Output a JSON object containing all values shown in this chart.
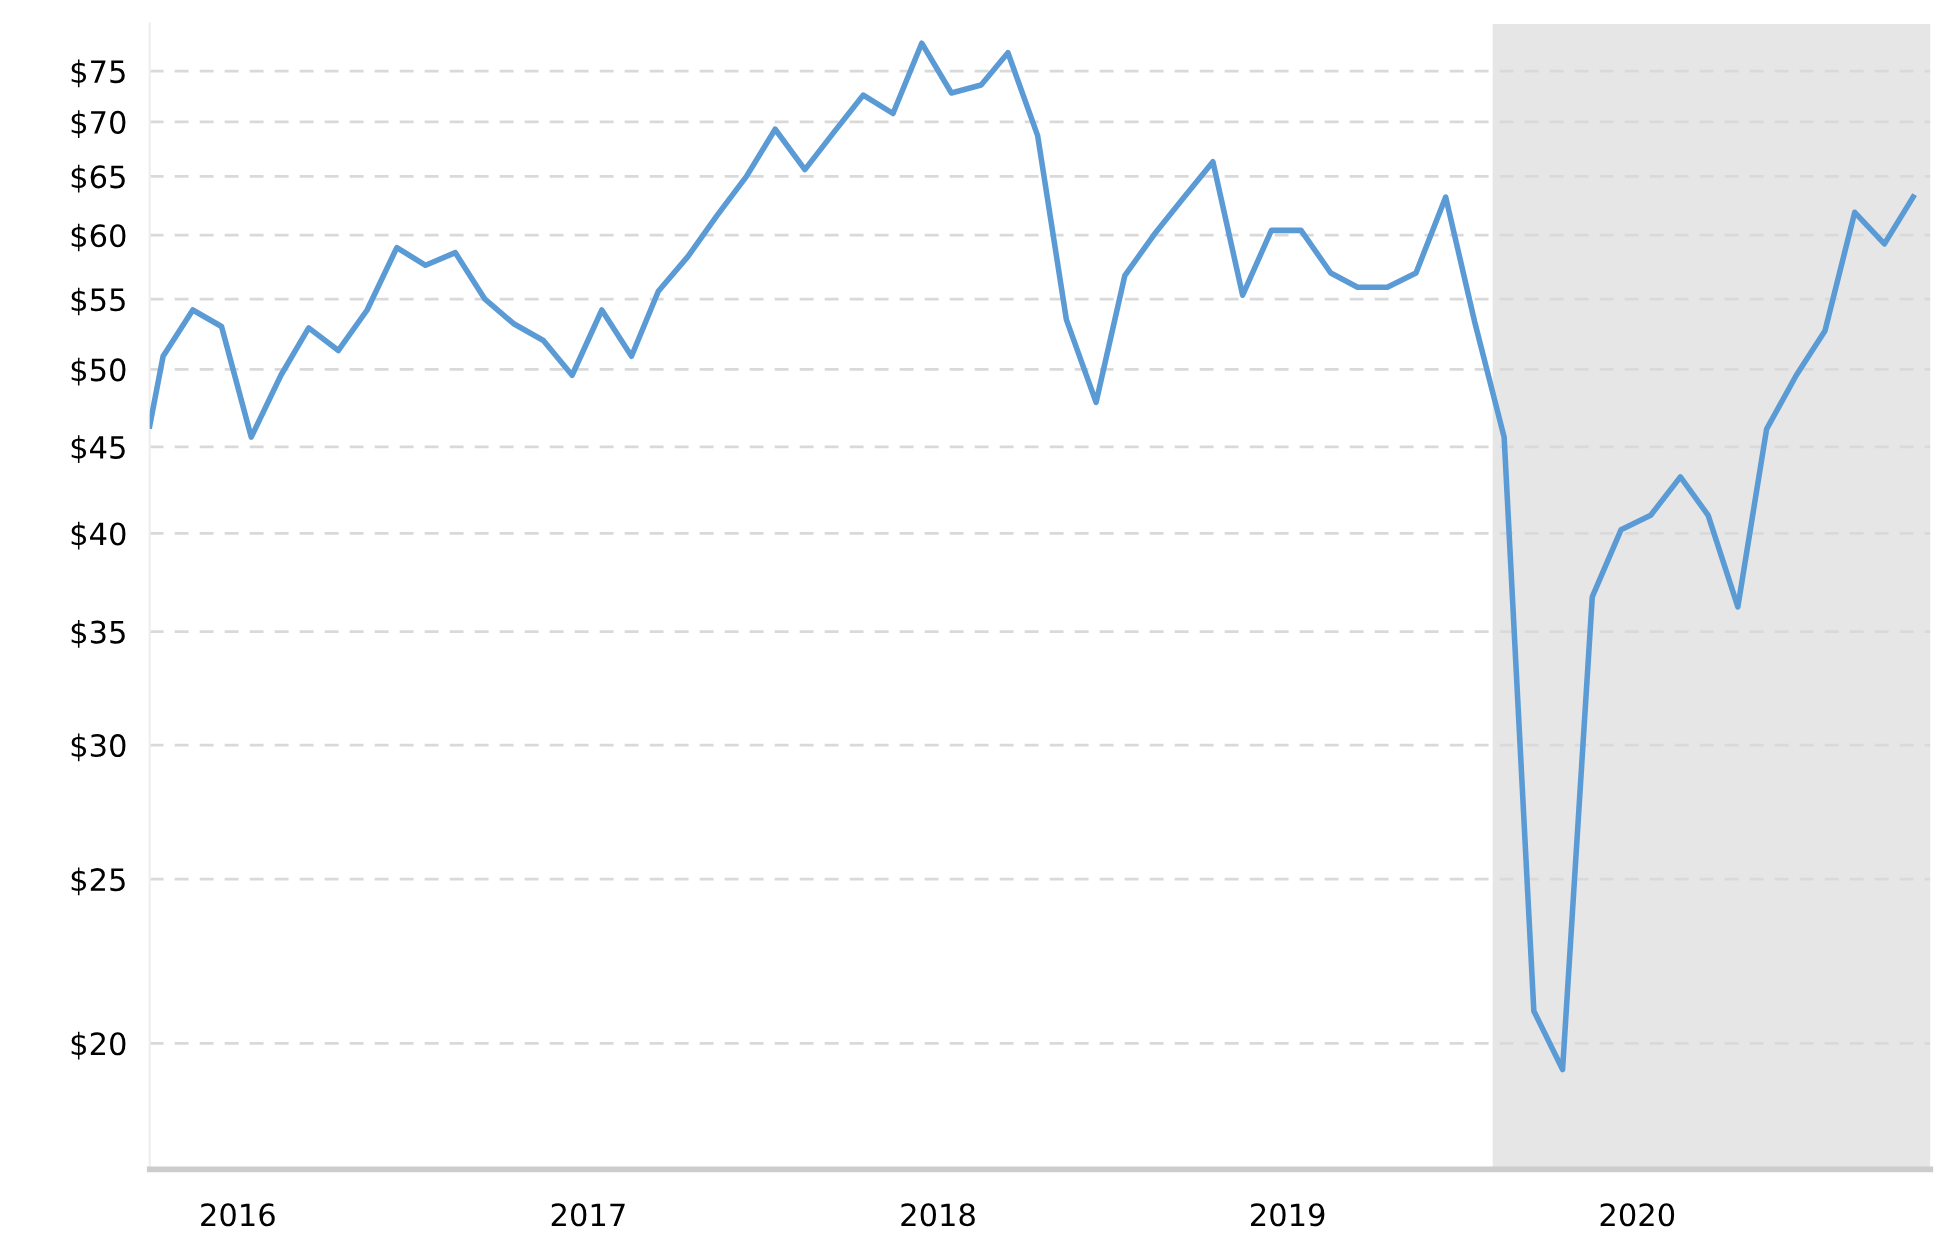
{
  "chart_data": {
    "type": "line",
    "x": [
      "2015-10-01",
      "2015-10-15",
      "2015-11-15",
      "2015-12-15",
      "2016-01-15",
      "2016-02-15",
      "2016-03-15",
      "2016-04-15",
      "2016-05-15",
      "2016-06-15",
      "2016-07-15",
      "2016-08-15",
      "2016-09-15",
      "2016-10-15",
      "2016-11-15",
      "2016-12-15",
      "2017-01-15",
      "2017-02-15",
      "2017-03-15",
      "2017-04-15",
      "2017-05-15",
      "2017-06-15",
      "2017-07-15",
      "2017-08-15",
      "2017-09-15",
      "2017-10-15",
      "2017-11-15",
      "2017-12-15",
      "2018-01-15",
      "2018-02-15",
      "2018-03-15",
      "2018-04-15",
      "2018-05-15",
      "2018-06-15",
      "2018-07-15",
      "2018-08-15",
      "2018-09-15",
      "2018-10-15",
      "2018-11-15",
      "2018-12-15",
      "2019-01-15",
      "2019-02-15",
      "2019-03-15",
      "2019-04-15",
      "2019-05-15",
      "2019-06-15",
      "2019-07-15",
      "2019-08-15",
      "2019-09-15",
      "2019-10-15",
      "2019-11-15",
      "2019-12-15",
      "2020-01-15",
      "2020-02-15",
      "2020-03-15",
      "2020-04-15",
      "2020-05-15",
      "2020-06-15",
      "2020-07-15",
      "2020-08-15",
      "2020-09-15",
      "2020-10-15"
    ],
    "series": [
      {
        "color": "#5b9bd5",
        "values": [
          46.3,
          50.9,
          54.2,
          53.0,
          45.6,
          49.6,
          52.9,
          51.3,
          54.2,
          59.0,
          57.6,
          58.6,
          55.0,
          53.2,
          52.0,
          49.6,
          54.2,
          50.9,
          55.6,
          58.3,
          61.6,
          65.0,
          69.3,
          65.6,
          69.1,
          72.6,
          70.8,
          77.9,
          72.8,
          73.6,
          76.9,
          68.7,
          53.5,
          47.8,
          56.8,
          60.1,
          63.2,
          66.3,
          55.3,
          60.4,
          60.4,
          57.0,
          55.9,
          55.9,
          57.0,
          63.2,
          53.4,
          45.6,
          20.9,
          19.3,
          36.7,
          40.2,
          41.0,
          43.2,
          41.0,
          36.2,
          46.1,
          49.6,
          52.7,
          61.9,
          59.3,
          63.2
        ]
      }
    ],
    "xlim": [
      "2015-10-01",
      "2020-11-02"
    ],
    "xticks": [
      {
        "value": "2016-01-01",
        "label": "2016"
      },
      {
        "value": "2017-01-01",
        "label": "2017"
      },
      {
        "value": "2018-01-01",
        "label": "2018"
      },
      {
        "value": "2019-01-01",
        "label": "2019"
      },
      {
        "value": "2020-01-01",
        "label": "2020"
      }
    ],
    "ylim": [
      16.85,
      80
    ],
    "yticks": [
      {
        "value": 20,
        "label": "$20"
      },
      {
        "value": 25,
        "label": "$25"
      },
      {
        "value": 30,
        "label": "$30"
      },
      {
        "value": 35,
        "label": "$35"
      },
      {
        "value": 40,
        "label": "$40"
      },
      {
        "value": 45,
        "label": "$45"
      },
      {
        "value": 50,
        "label": "$50"
      },
      {
        "value": 55,
        "label": "$55"
      },
      {
        "value": 60,
        "label": "$60"
      },
      {
        "value": 65,
        "label": "$65"
      },
      {
        "value": 70,
        "label": "$70"
      },
      {
        "value": 75,
        "label": "$75"
      }
    ],
    "log": true,
    "grid": "y",
    "marker": "none",
    "line_style": "solid",
    "bands": [
      {
        "axis": "x",
        "from": "2019-08-03",
        "to": "2020-11-02",
        "color": "#e6e6e6"
      }
    ]
  }
}
